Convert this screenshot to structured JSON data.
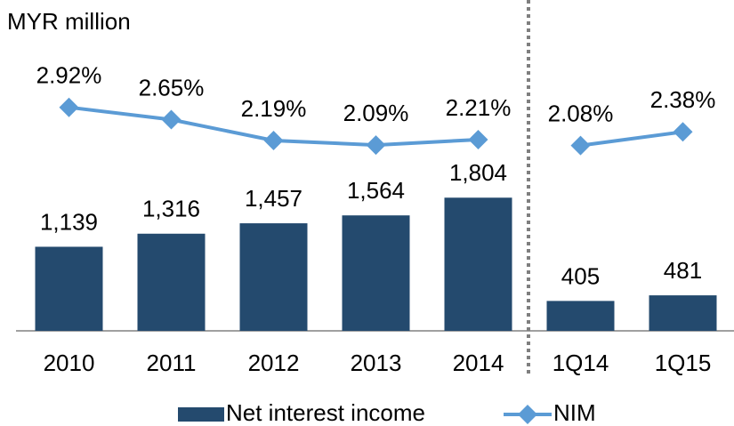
{
  "chart_data": {
    "type": "bar_line",
    "annotation": "MYR million",
    "categories": [
      "2010",
      "2011",
      "2012",
      "2013",
      "2014",
      "1Q14",
      "1Q15"
    ],
    "series": [
      {
        "name": "Net interest income",
        "type": "bar",
        "color": "#244a6e",
        "values": [
          1139,
          1316,
          1457,
          1564,
          1804,
          405,
          481
        ],
        "value_labels": [
          "1,139",
          "1,316",
          "1,457",
          "1,564",
          "1,804",
          "405",
          "481"
        ]
      },
      {
        "name": "NIM",
        "type": "line",
        "axis": "y2",
        "color": "#5b9bd5",
        "values": [
          2.92,
          2.65,
          2.19,
          2.09,
          2.21,
          2.08,
          2.38
        ],
        "value_labels": [
          "2.92%",
          "2.65%",
          "2.19%",
          "2.09%",
          "2.21%",
          "2.08%",
          "2.38%"
        ]
      }
    ],
    "ylim": [
      0,
      4000
    ],
    "y2lim": [
      -2,
      4.5
    ],
    "legend": "bottom"
  }
}
